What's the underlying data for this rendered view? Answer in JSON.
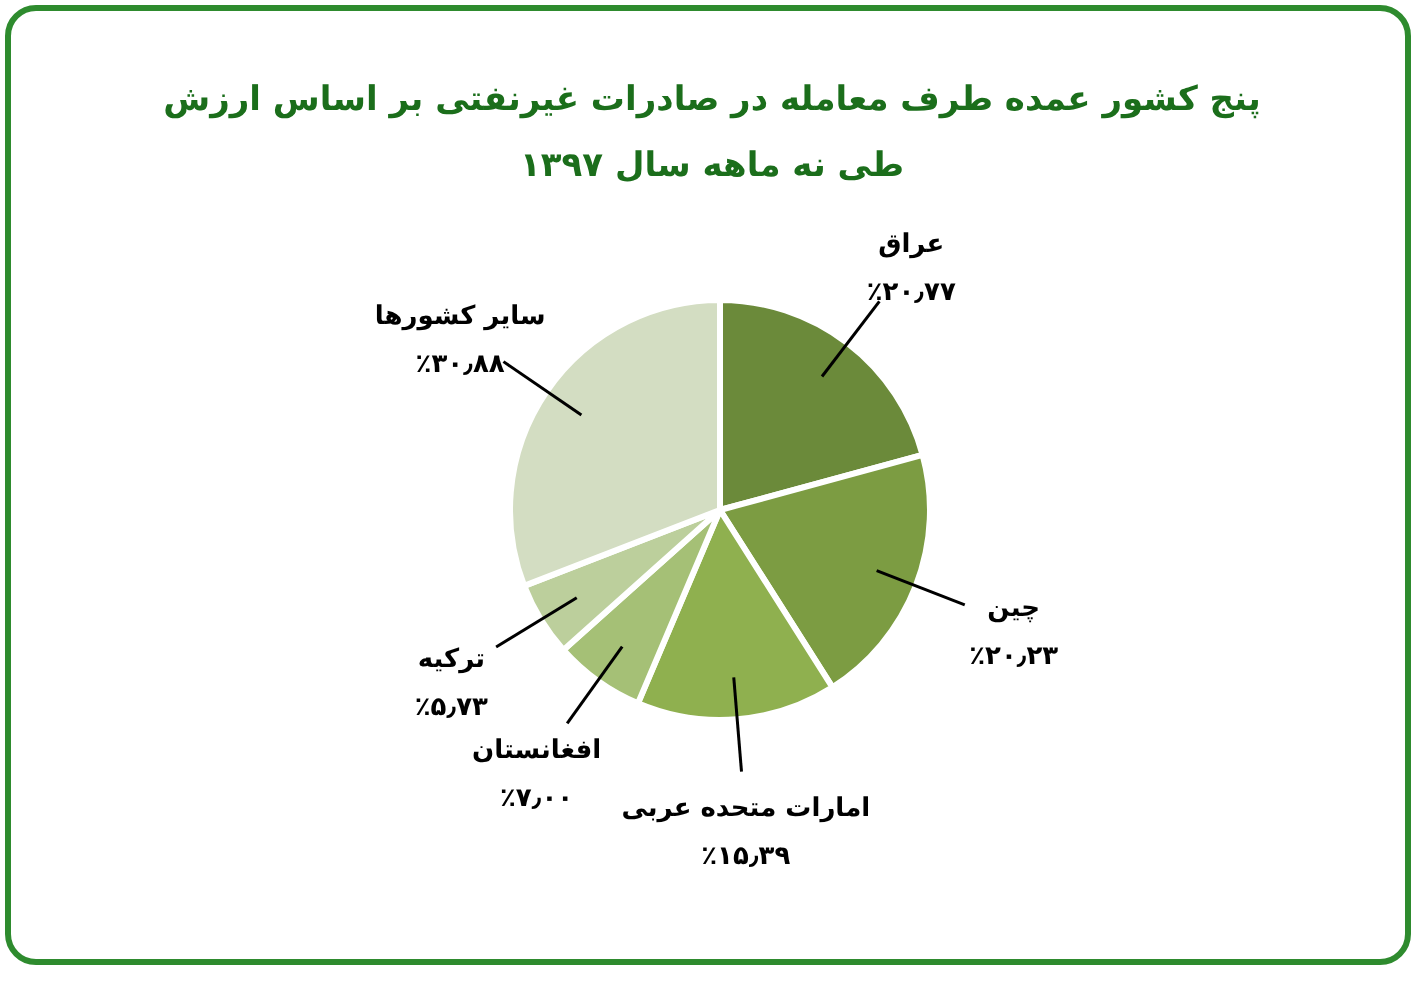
{
  "chart_data": {
    "type": "pie",
    "title": "پنج کشور عمده طرف معامله در صادرات غیرنفتی بر اساس ارزش",
    "subtitle": "طی نه ماهه سال ۱۳۹۷",
    "categories": [
      "عراق",
      "چین",
      "امارات متحده عربی",
      "افغانستان",
      "ترکیه",
      "سایر کشورها"
    ],
    "values": [
      20.77,
      20.23,
      15.39,
      7.0,
      5.73,
      30.88
    ],
    "value_labels": [
      "٪۲۰٫۷۷",
      "٪۲۰٫۲۳",
      "٪۱۵٫۳۹",
      "٪۷٫۰۰",
      "٪۵٫۷۳",
      "٪۳۰٫۸۸"
    ],
    "colors": [
      "#6b8a3a",
      "#7c9c42",
      "#8fb04f",
      "#a5c076",
      "#bccf9c",
      "#d3ddc2"
    ]
  }
}
